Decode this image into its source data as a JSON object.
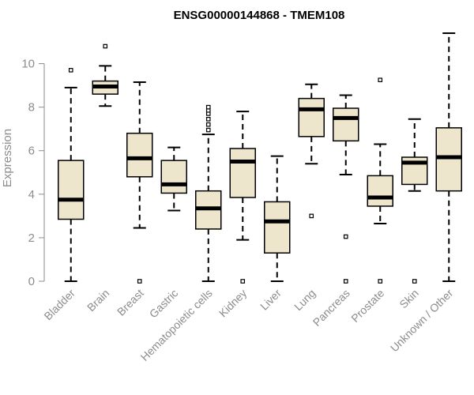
{
  "chart_data": {
    "type": "boxplot",
    "title": "ENSG00000144868 - TMEM108",
    "xlabel": "",
    "ylabel": "Expression",
    "ylim": [
      0,
      11.4
    ],
    "yticks": [
      0,
      2,
      4,
      6,
      8,
      10
    ],
    "box_fill": "#ede6cc",
    "stroke": "#000000",
    "axis_color": "#8c8c8c",
    "categories": [
      "Bladder",
      "Brain",
      "Breast",
      "Gastric",
      "Hematopoietic cells",
      "Kidney",
      "Liver",
      "Lung",
      "Pancreas",
      "Prostate",
      "Skin",
      "Unknown / Other"
    ],
    "boxes": [
      {
        "category": "Bladder",
        "whisker_low": 0.0,
        "q1": 2.85,
        "median": 3.75,
        "q3": 5.55,
        "whisker_high": 8.9,
        "outliers": [
          9.7
        ]
      },
      {
        "category": "Brain",
        "whisker_low": 8.05,
        "q1": 8.6,
        "median": 8.95,
        "q3": 9.2,
        "whisker_high": 9.9,
        "outliers": [
          10.8
        ]
      },
      {
        "category": "Breast",
        "whisker_low": 2.45,
        "q1": 4.8,
        "median": 5.65,
        "q3": 6.8,
        "whisker_high": 9.15,
        "outliers": [
          0.0
        ]
      },
      {
        "category": "Gastric",
        "whisker_low": 3.25,
        "q1": 4.05,
        "median": 4.45,
        "q3": 5.55,
        "whisker_high": 6.15,
        "outliers": []
      },
      {
        "category": "Hematopoietic cells",
        "whisker_low": 0.0,
        "q1": 2.4,
        "median": 3.35,
        "q3": 4.15,
        "whisker_high": 6.75,
        "outliers": [
          6.95,
          7.2,
          7.45,
          7.7,
          7.85,
          8.0
        ]
      },
      {
        "category": "Kidney",
        "whisker_low": 1.9,
        "q1": 3.85,
        "median": 5.5,
        "q3": 6.1,
        "whisker_high": 7.8,
        "outliers": [
          0.0
        ]
      },
      {
        "category": "Liver",
        "whisker_low": 0.0,
        "q1": 1.3,
        "median": 2.75,
        "q3": 3.65,
        "whisker_high": 5.75,
        "outliers": []
      },
      {
        "category": "Lung",
        "whisker_low": 5.4,
        "q1": 6.65,
        "median": 7.9,
        "q3": 8.4,
        "whisker_high": 9.05,
        "outliers": [
          3.0
        ]
      },
      {
        "category": "Pancreas",
        "whisker_low": 4.9,
        "q1": 6.45,
        "median": 7.5,
        "q3": 7.95,
        "whisker_high": 8.55,
        "outliers": [
          2.05,
          0.0
        ]
      },
      {
        "category": "Prostate",
        "whisker_low": 2.65,
        "q1": 3.45,
        "median": 3.85,
        "q3": 4.85,
        "whisker_high": 6.3,
        "outliers": [
          9.25,
          0.0
        ]
      },
      {
        "category": "Skin",
        "whisker_low": 4.15,
        "q1": 4.45,
        "median": 5.45,
        "q3": 5.7,
        "whisker_high": 7.45,
        "outliers": [
          0.0
        ]
      },
      {
        "category": "Unknown / Other",
        "whisker_low": 0.0,
        "q1": 4.15,
        "median": 5.7,
        "q3": 7.05,
        "whisker_high": 11.4,
        "outliers": []
      }
    ]
  }
}
